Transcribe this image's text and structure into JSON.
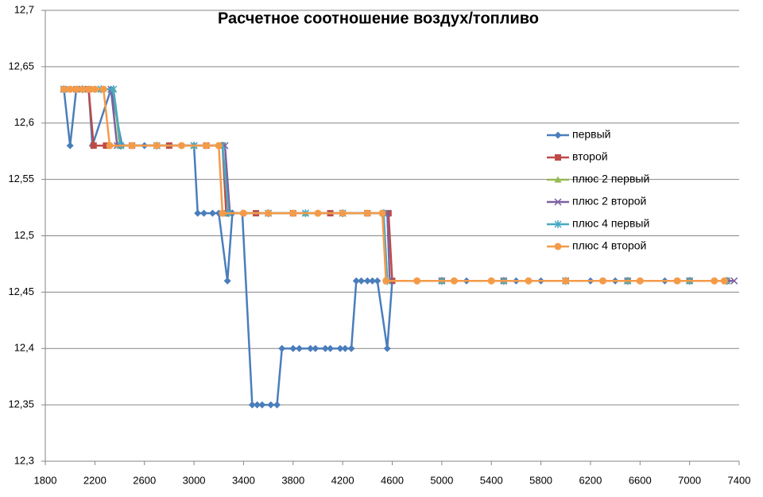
{
  "chart_data": {
    "type": "line",
    "title": "Расчетное соотношение воздух/топливо",
    "xlim": [
      1800,
      7400
    ],
    "xticks": [
      1800,
      2200,
      2600,
      3000,
      3400,
      3800,
      4200,
      4600,
      5000,
      5400,
      5800,
      6200,
      6600,
      7000,
      7400
    ],
    "ylim": [
      12.3,
      12.7
    ],
    "yticks": [
      {
        "value": 12.3,
        "label": "12,3"
      },
      {
        "value": 12.35,
        "label": "12,35"
      },
      {
        "value": 12.4,
        "label": "12,4"
      },
      {
        "value": 12.45,
        "label": "12,45"
      },
      {
        "value": 12.5,
        "label": "12,5"
      },
      {
        "value": 12.55,
        "label": "12,55"
      },
      {
        "value": 12.6,
        "label": "12,6"
      },
      {
        "value": 12.65,
        "label": "12,65"
      },
      {
        "value": 12.7,
        "label": "12,7"
      }
    ],
    "grid": true,
    "legend": "right",
    "series": [
      {
        "name": "первый",
        "color": "#4a7ebb",
        "marker": "diamond",
        "x": [
          1950,
          2000,
          2050,
          2100,
          2150,
          2180,
          2330,
          2420,
          2600,
          2800,
          3000,
          3030,
          3080,
          3150,
          3200,
          3270,
          3310,
          3390,
          3470,
          3510,
          3550,
          3620,
          3670,
          3710,
          3800,
          3850,
          3940,
          3980,
          4060,
          4100,
          4180,
          4220,
          4270,
          4310,
          4350,
          4400,
          4440,
          4480,
          4560,
          4600,
          4800,
          5000,
          5200,
          5400,
          5600,
          5800,
          6000,
          6200,
          6400,
          6600,
          6800,
          7000,
          7200,
          7300
        ],
        "values": [
          12.63,
          12.58,
          12.63,
          12.63,
          12.63,
          12.58,
          12.63,
          12.58,
          12.58,
          12.58,
          12.58,
          12.52,
          12.52,
          12.52,
          12.52,
          12.46,
          12.52,
          12.52,
          12.35,
          12.35,
          12.35,
          12.35,
          12.35,
          12.4,
          12.4,
          12.4,
          12.4,
          12.4,
          12.4,
          12.4,
          12.4,
          12.4,
          12.4,
          12.46,
          12.46,
          12.46,
          12.46,
          12.46,
          12.4,
          12.46,
          12.46,
          12.46,
          12.46,
          12.46,
          12.46,
          12.46,
          12.46,
          12.46,
          12.46,
          12.46,
          12.46,
          12.46,
          12.46,
          12.46
        ]
      },
      {
        "name": "второй",
        "color": "#be4b48",
        "marker": "square",
        "x": [
          1950,
          2050,
          2150,
          2190,
          2290,
          2500,
          2800,
          3100,
          3230,
          3260,
          3500,
          3800,
          4100,
          4400,
          4570,
          4600,
          5000,
          5500,
          6000,
          6500,
          7000,
          7300
        ],
        "values": [
          12.63,
          12.63,
          12.63,
          12.58,
          12.58,
          12.58,
          12.58,
          12.58,
          12.58,
          12.52,
          12.52,
          12.52,
          12.52,
          12.52,
          12.52,
          12.46,
          12.46,
          12.46,
          12.46,
          12.46,
          12.46,
          12.46
        ]
      },
      {
        "name": "плюс 2 первый",
        "color": "#98b954",
        "marker": "triangle",
        "x": [
          1950,
          2100,
          2250,
          2350,
          2400,
          2700,
          3000,
          3230,
          3280,
          3600,
          3900,
          4200,
          4530,
          4560,
          5000,
          5500,
          6000,
          6500,
          7000,
          7300
        ],
        "values": [
          12.63,
          12.63,
          12.63,
          12.63,
          12.58,
          12.58,
          12.58,
          12.58,
          12.52,
          12.52,
          12.52,
          12.52,
          12.52,
          12.46,
          12.46,
          12.46,
          12.46,
          12.46,
          12.46,
          12.46
        ]
      },
      {
        "name": "плюс 2 второй",
        "color": "#7d60a0",
        "marker": "x",
        "x": [
          1950,
          2100,
          2250,
          2330,
          2380,
          2700,
          3000,
          3250,
          3290,
          3600,
          3900,
          4200,
          4560,
          4580,
          5000,
          5500,
          6000,
          6500,
          7000,
          7360
        ],
        "values": [
          12.63,
          12.63,
          12.63,
          12.63,
          12.58,
          12.58,
          12.58,
          12.58,
          12.52,
          12.52,
          12.52,
          12.52,
          12.52,
          12.46,
          12.46,
          12.46,
          12.46,
          12.46,
          12.46,
          12.46
        ]
      },
      {
        "name": "плюс 4 первый",
        "color": "#46aac5",
        "marker": "star",
        "x": [
          1950,
          2100,
          2250,
          2350,
          2410,
          2700,
          3000,
          3230,
          3280,
          3600,
          3900,
          4200,
          4530,
          4560,
          5000,
          5500,
          6000,
          6500,
          7000,
          7300
        ],
        "values": [
          12.63,
          12.63,
          12.63,
          12.63,
          12.58,
          12.58,
          12.58,
          12.58,
          12.52,
          12.52,
          12.52,
          12.52,
          12.52,
          12.46,
          12.46,
          12.46,
          12.46,
          12.46,
          12.46,
          12.46
        ]
      },
      {
        "name": "плюс 4 второй",
        "color": "#f49b4a",
        "marker": "circle",
        "x": [
          1950,
          2000,
          2050,
          2100,
          2150,
          2200,
          2270,
          2320,
          2500,
          2700,
          2900,
          3100,
          3200,
          3230,
          3400,
          3600,
          3800,
          4000,
          4200,
          4400,
          4520,
          4550,
          4800,
          5100,
          5400,
          5700,
          6000,
          6300,
          6600,
          6900,
          7200,
          7280
        ],
        "values": [
          12.63,
          12.63,
          12.63,
          12.63,
          12.63,
          12.63,
          12.63,
          12.58,
          12.58,
          12.58,
          12.58,
          12.58,
          12.58,
          12.52,
          12.52,
          12.52,
          12.52,
          12.52,
          12.52,
          12.52,
          12.52,
          12.46,
          12.46,
          12.46,
          12.46,
          12.46,
          12.46,
          12.46,
          12.46,
          12.46,
          12.46,
          12.46
        ]
      }
    ]
  }
}
